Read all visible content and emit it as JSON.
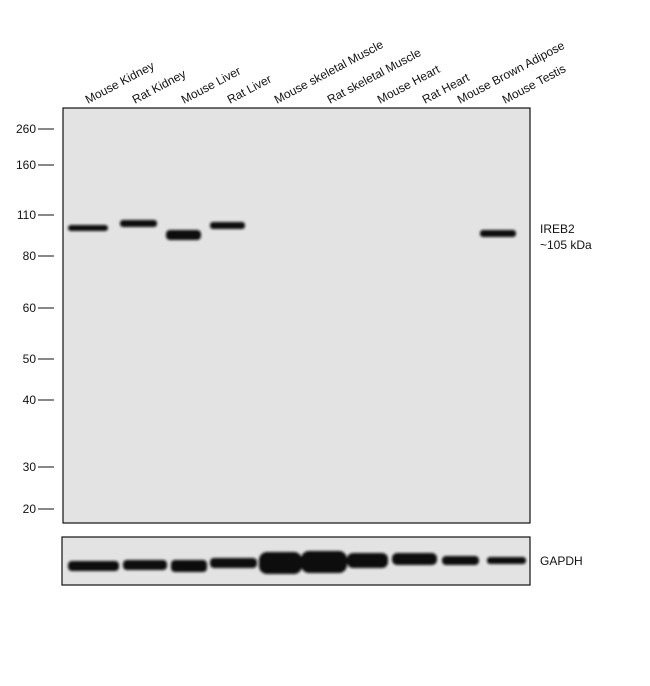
{
  "lanes": [
    "Mouse Kidney",
    "Rat Kidney",
    "Mouse Liver",
    "Rat Liver",
    "Mouse skeletal Muscle",
    "Rat skeletal Muscle",
    "Mouse Heart",
    "Rat Heart",
    "Mouse Brown Adipose",
    "Mouse Testis"
  ],
  "markers": [
    "260",
    "160",
    "110",
    "80",
    "60",
    "50",
    "40",
    "30",
    "20"
  ],
  "target": {
    "name": "IREB2",
    "size": "~105 kDa"
  },
  "loading_control": "GAPDH"
}
